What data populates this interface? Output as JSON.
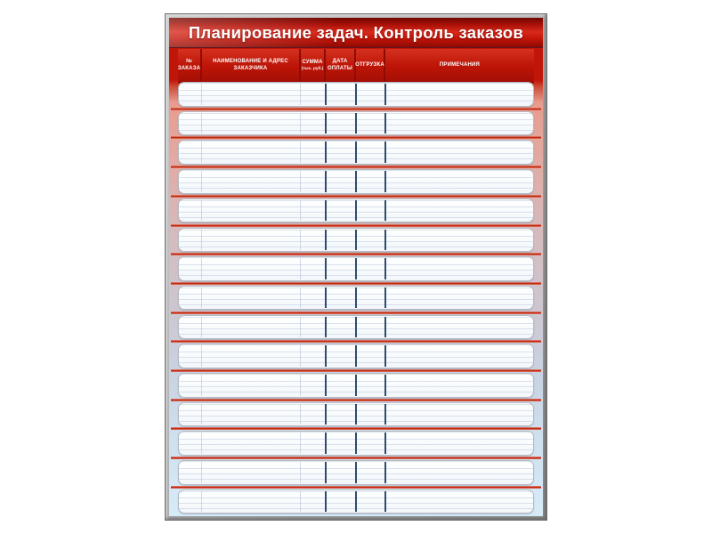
{
  "board": {
    "title": "Планирование задач. Контроль заказов",
    "header": {
      "columns": [
        {
          "id": "order-no",
          "label": "№\nЗАКАЗА"
        },
        {
          "id": "customer",
          "label": "НАИМЕНОВАНИЕ И АДРЕС\nЗАКАЗЧИКА"
        },
        {
          "id": "sum",
          "label": "СУММА",
          "sublabel": "(тыс. руб.)"
        },
        {
          "id": "payment-date",
          "label": "ДАТА\nОПЛАТЫ"
        },
        {
          "id": "shipment",
          "label": "ОТГРУЗКА"
        },
        {
          "id": "notes",
          "label": "ПРИМЕЧАНИЯ"
        }
      ]
    },
    "rows": [
      {
        "order-no": "",
        "customer": "",
        "sum": "",
        "payment-date": "",
        "shipment": "",
        "notes": ""
      },
      {
        "order-no": "",
        "customer": "",
        "sum": "",
        "payment-date": "",
        "shipment": "",
        "notes": ""
      },
      {
        "order-no": "",
        "customer": "",
        "sum": "",
        "payment-date": "",
        "shipment": "",
        "notes": ""
      },
      {
        "order-no": "",
        "customer": "",
        "sum": "",
        "payment-date": "",
        "shipment": "",
        "notes": ""
      },
      {
        "order-no": "",
        "customer": "",
        "sum": "",
        "payment-date": "",
        "shipment": "",
        "notes": ""
      },
      {
        "order-no": "",
        "customer": "",
        "sum": "",
        "payment-date": "",
        "shipment": "",
        "notes": ""
      },
      {
        "order-no": "",
        "customer": "",
        "sum": "",
        "payment-date": "",
        "shipment": "",
        "notes": ""
      },
      {
        "order-no": "",
        "customer": "",
        "sum": "",
        "payment-date": "",
        "shipment": "",
        "notes": ""
      },
      {
        "order-no": "",
        "customer": "",
        "sum": "",
        "payment-date": "",
        "shipment": "",
        "notes": ""
      },
      {
        "order-no": "",
        "customer": "",
        "sum": "",
        "payment-date": "",
        "shipment": "",
        "notes": ""
      },
      {
        "order-no": "",
        "customer": "",
        "sum": "",
        "payment-date": "",
        "shipment": "",
        "notes": ""
      },
      {
        "order-no": "",
        "customer": "",
        "sum": "",
        "payment-date": "",
        "shipment": "",
        "notes": ""
      },
      {
        "order-no": "",
        "customer": "",
        "sum": "",
        "payment-date": "",
        "shipment": "",
        "notes": ""
      },
      {
        "order-no": "",
        "customer": "",
        "sum": "",
        "payment-date": "",
        "shipment": "",
        "notes": ""
      },
      {
        "order-no": "",
        "customer": "",
        "sum": "",
        "payment-date": "",
        "shipment": "",
        "notes": ""
      }
    ],
    "colors": {
      "board_red": "#c2150a",
      "banner_red_dark": "#8c0a03",
      "header_gap_red": "#8f0b04",
      "separator_red": "#c1250f",
      "divider_navy": "#2e4c6d",
      "frame_gray": "#a9a9a9",
      "bottom_blue": "#d6ebf8",
      "row_white": "#ffffff"
    }
  }
}
